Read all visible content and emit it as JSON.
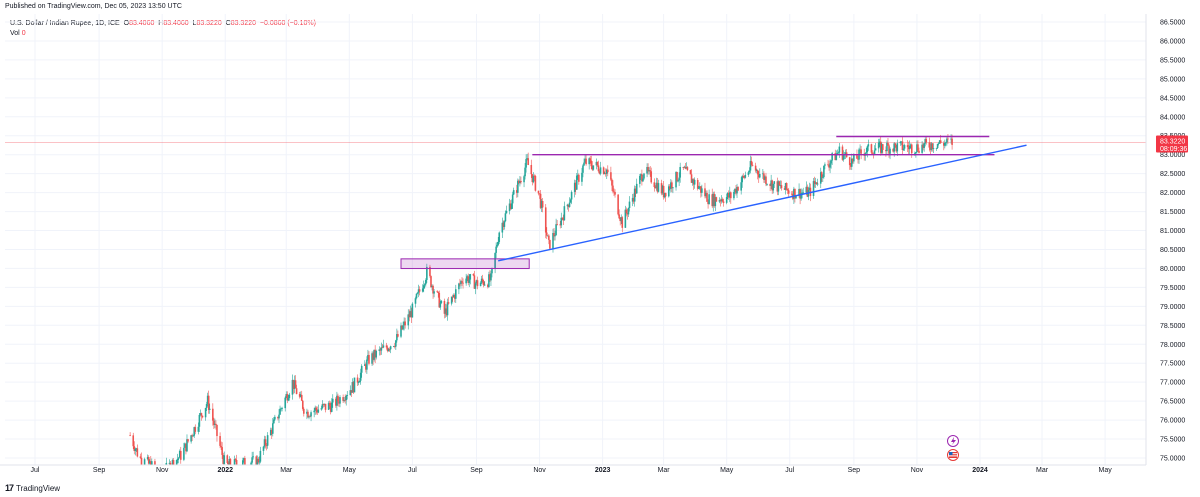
{
  "header": {
    "published": "Published on TradingView.com, Dec 05, 2023 13:50 UTC",
    "symbol": "U.S. Dollar / Indian Rupee, 1D, ICE",
    "o_label": "O",
    "o_val": "83.4060",
    "h_label": "H",
    "h_val": "83.4060",
    "l_label": "L",
    "l_val": "83.3220",
    "c_label": "C",
    "c_val": "83.3220",
    "change": "−0.0860 (−0.10%)",
    "vol_label": "Vol",
    "vol_val": "0"
  },
  "price_tag": {
    "value": "83.3220",
    "countdown": "08:09:36"
  },
  "footer": {
    "brand": "TradingView",
    "logo": "17"
  },
  "chart_data": {
    "type": "candlestick",
    "y_ticks": [
      "86.5000",
      "86.0000",
      "85.5000",
      "85.0000",
      "84.5000",
      "84.0000",
      "83.5000",
      "83.0000",
      "82.5000",
      "82.0000",
      "81.5000",
      "81.0000",
      "80.5000",
      "80.0000",
      "79.5000",
      "79.0000",
      "78.5000",
      "78.0000",
      "77.5000",
      "77.0000",
      "76.5000",
      "76.0000",
      "75.5000",
      "75.0000"
    ],
    "ylim": [
      74.9,
      86.6
    ],
    "x_ticks": [
      "Jul",
      "Sep",
      "Nov",
      "2022",
      "Mar",
      "May",
      "Jul",
      "Sep",
      "Nov",
      "2023",
      "Mar",
      "May",
      "Jul",
      "Sep",
      "Nov",
      "2024",
      "Mar",
      "May"
    ],
    "last_price": 83.322,
    "colors": {
      "up": "#26a69a",
      "down": "#ef5350",
      "box": "#9c27b0",
      "trend": "#2962ff",
      "priceline": "#f23645"
    },
    "path_points": [
      {
        "x": "2021-10-01",
        "y": 75.6
      },
      {
        "x": "2021-10-10",
        "y": 75.0
      },
      {
        "x": "2021-11-01",
        "y": 74.6
      },
      {
        "x": "2021-11-20",
        "y": 75.1
      },
      {
        "x": "2021-12-15",
        "y": 76.5
      },
      {
        "x": "2022-01-01",
        "y": 74.8
      },
      {
        "x": "2022-02-01",
        "y": 74.9
      },
      {
        "x": "2022-03-07",
        "y": 77.0
      },
      {
        "x": "2022-03-20",
        "y": 76.2
      },
      {
        "x": "2022-04-15",
        "y": 76.4
      },
      {
        "x": "2022-05-05",
        "y": 76.9
      },
      {
        "x": "2022-05-20",
        "y": 77.6
      },
      {
        "x": "2022-06-15",
        "y": 78.1
      },
      {
        "x": "2022-07-01",
        "y": 78.9
      },
      {
        "x": "2022-07-15",
        "y": 79.9
      },
      {
        "x": "2022-08-01",
        "y": 78.8
      },
      {
        "x": "2022-08-20",
        "y": 79.8
      },
      {
        "x": "2022-09-01",
        "y": 79.6
      },
      {
        "x": "2022-09-15",
        "y": 79.7
      },
      {
        "x": "2022-09-23",
        "y": 81.0
      },
      {
        "x": "2022-10-05",
        "y": 81.8
      },
      {
        "x": "2022-10-20",
        "y": 82.8
      },
      {
        "x": "2022-11-01",
        "y": 81.9
      },
      {
        "x": "2022-11-10",
        "y": 80.6
      },
      {
        "x": "2022-11-25",
        "y": 81.5
      },
      {
        "x": "2022-12-15",
        "y": 82.8
      },
      {
        "x": "2023-01-05",
        "y": 82.6
      },
      {
        "x": "2023-01-20",
        "y": 81.2
      },
      {
        "x": "2023-02-10",
        "y": 82.6
      },
      {
        "x": "2023-03-01",
        "y": 82.0
      },
      {
        "x": "2023-03-20",
        "y": 82.6
      },
      {
        "x": "2023-04-15",
        "y": 81.8
      },
      {
        "x": "2023-05-05",
        "y": 81.9
      },
      {
        "x": "2023-05-25",
        "y": 82.7
      },
      {
        "x": "2023-06-15",
        "y": 82.2
      },
      {
        "x": "2023-07-05",
        "y": 82.0
      },
      {
        "x": "2023-07-20",
        "y": 82.0
      },
      {
        "x": "2023-08-05",
        "y": 82.7
      },
      {
        "x": "2023-08-18",
        "y": 83.1
      },
      {
        "x": "2023-08-31",
        "y": 82.8
      },
      {
        "x": "2023-09-10",
        "y": 83.1
      },
      {
        "x": "2023-10-01",
        "y": 83.2
      },
      {
        "x": "2023-11-01",
        "y": 83.2
      },
      {
        "x": "2023-11-20",
        "y": 83.3
      },
      {
        "x": "2023-12-05",
        "y": 83.32
      }
    ],
    "drawings": [
      {
        "kind": "box",
        "x1": "2022-06-20",
        "x2": "2022-10-22",
        "y1": 80.05,
        "y2": 80.2
      },
      {
        "kind": "hline",
        "x1": "2022-10-25",
        "x2": "2024-01-15",
        "y": 83.0
      },
      {
        "kind": "hline",
        "x1": "2023-08-15",
        "x2": "2024-01-10",
        "y": 83.48
      },
      {
        "kind": "trendline",
        "x1": "2022-09-22",
        "y1": 80.2,
        "x2": "2024-02-15",
        "y2": 83.25
      }
    ]
  }
}
